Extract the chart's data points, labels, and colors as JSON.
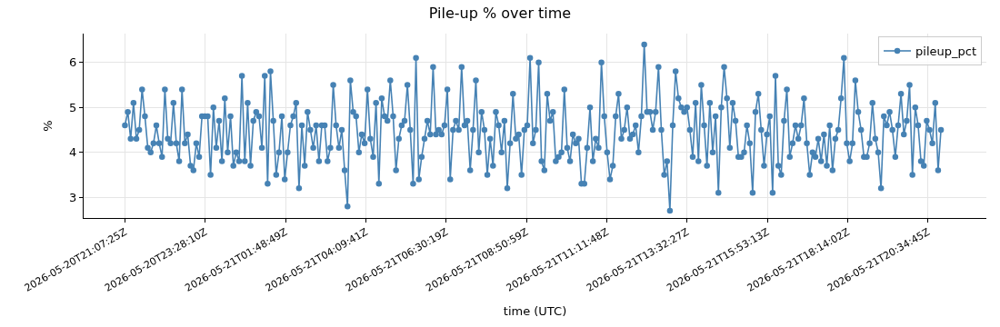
{
  "chart_data": {
    "type": "line",
    "title": "Pile-up % over time",
    "xlabel": "time (UTC)",
    "ylabel": "%",
    "x": [
      "2026-05-20T21:07:25",
      "2026-05-20T21:12:25",
      "2026-05-20T21:17:25",
      "2026-05-20T21:22:25",
      "2026-05-20T21:27:25",
      "2026-05-20T21:32:25",
      "2026-05-20T21:37:25",
      "2026-05-20T21:42:25",
      "2026-05-20T21:47:25",
      "2026-05-20T21:52:25",
      "2026-05-20T21:57:25",
      "2026-05-20T22:02:25",
      "2026-05-20T22:07:25",
      "2026-05-20T22:12:25",
      "2026-05-20T22:17:25",
      "2026-05-20T22:22:25",
      "2026-05-20T22:27:25",
      "2026-05-20T22:32:25",
      "2026-05-20T22:37:25",
      "2026-05-20T22:42:25",
      "2026-05-20T22:47:25",
      "2026-05-20T22:52:25",
      "2026-05-20T22:57:25",
      "2026-05-20T23:02:25",
      "2026-05-20T23:07:25",
      "2026-05-20T23:12:25",
      "2026-05-20T23:17:25",
      "2026-05-20T23:22:25",
      "2026-05-20T23:27:25",
      "2026-05-20T23:32:25",
      "2026-05-20T23:37:25",
      "2026-05-20T23:42:25",
      "2026-05-20T23:47:25",
      "2026-05-20T23:52:25",
      "2026-05-20T23:57:25",
      "2026-05-21T00:02:25",
      "2026-05-21T00:07:25",
      "2026-05-21T00:12:25",
      "2026-05-21T00:17:25",
      "2026-05-21T00:22:25",
      "2026-05-21T00:27:25",
      "2026-05-21T00:32:25",
      "2026-05-21T00:37:25",
      "2026-05-21T00:42:25",
      "2026-05-21T00:47:25",
      "2026-05-21T00:52:25",
      "2026-05-21T00:57:25",
      "2026-05-21T01:02:25",
      "2026-05-21T01:07:25",
      "2026-05-21T01:12:25",
      "2026-05-21T01:17:25",
      "2026-05-21T01:22:25",
      "2026-05-21T01:27:25",
      "2026-05-21T01:32:25",
      "2026-05-21T01:37:25",
      "2026-05-21T01:42:25",
      "2026-05-21T01:47:25",
      "2026-05-21T01:52:25",
      "2026-05-21T01:57:25",
      "2026-05-21T02:02:25",
      "2026-05-21T02:07:25",
      "2026-05-21T02:12:25",
      "2026-05-21T02:17:25",
      "2026-05-21T02:22:25",
      "2026-05-21T02:27:25",
      "2026-05-21T02:32:25",
      "2026-05-21T02:37:25",
      "2026-05-21T02:42:25",
      "2026-05-21T02:47:25",
      "2026-05-21T02:52:25",
      "2026-05-21T02:57:25",
      "2026-05-21T03:02:25",
      "2026-05-21T03:07:25",
      "2026-05-21T03:12:25",
      "2026-05-21T03:17:25",
      "2026-05-21T03:22:25",
      "2026-05-21T03:27:25",
      "2026-05-21T03:32:25",
      "2026-05-21T03:37:25",
      "2026-05-21T03:42:25",
      "2026-05-21T03:47:25",
      "2026-05-21T03:52:25",
      "2026-05-21T03:57:25",
      "2026-05-21T04:02:25",
      "2026-05-21T04:07:25",
      "2026-05-21T04:12:25",
      "2026-05-21T04:17:25",
      "2026-05-21T04:22:25",
      "2026-05-21T04:27:25",
      "2026-05-21T04:32:25",
      "2026-05-21T04:37:25",
      "2026-05-21T04:42:25",
      "2026-05-21T04:47:25",
      "2026-05-21T04:52:25",
      "2026-05-21T04:57:25",
      "2026-05-21T05:02:25",
      "2026-05-21T05:07:25",
      "2026-05-21T05:12:25",
      "2026-05-21T05:17:25",
      "2026-05-21T05:22:25",
      "2026-05-21T05:27:25",
      "2026-05-21T05:32:25",
      "2026-05-21T05:37:25",
      "2026-05-21T05:42:25",
      "2026-05-21T05:47:25",
      "2026-05-21T05:52:25",
      "2026-05-21T05:57:25",
      "2026-05-21T06:02:25",
      "2026-05-21T06:07:25",
      "2026-05-21T06:12:25",
      "2026-05-21T06:17:25",
      "2026-05-21T06:22:25",
      "2026-05-21T06:27:25",
      "2026-05-21T06:32:25",
      "2026-05-21T06:37:25",
      "2026-05-21T06:42:25",
      "2026-05-21T06:47:25",
      "2026-05-21T06:52:25",
      "2026-05-21T06:57:25",
      "2026-05-21T07:02:25",
      "2026-05-21T07:07:25",
      "2026-05-21T07:12:25",
      "2026-05-21T07:17:25",
      "2026-05-21T07:22:25",
      "2026-05-21T07:27:25",
      "2026-05-21T07:32:25",
      "2026-05-21T07:37:25",
      "2026-05-21T07:42:25",
      "2026-05-21T07:47:25",
      "2026-05-21T07:52:25",
      "2026-05-21T07:57:25",
      "2026-05-21T08:02:25",
      "2026-05-21T08:07:25",
      "2026-05-21T08:12:25",
      "2026-05-21T08:17:25",
      "2026-05-21T08:22:25",
      "2026-05-21T08:27:25",
      "2026-05-21T08:32:25",
      "2026-05-21T08:37:25",
      "2026-05-21T08:42:25",
      "2026-05-21T08:47:25",
      "2026-05-21T08:52:25",
      "2026-05-21T08:57:25",
      "2026-05-21T09:02:25",
      "2026-05-21T09:07:25",
      "2026-05-21T09:12:25",
      "2026-05-21T09:17:25",
      "2026-05-21T09:22:25",
      "2026-05-21T09:27:25",
      "2026-05-21T09:32:25",
      "2026-05-21T09:37:25",
      "2026-05-21T09:42:25",
      "2026-05-21T09:47:25",
      "2026-05-21T09:52:25",
      "2026-05-21T09:57:25",
      "2026-05-21T10:02:25",
      "2026-05-21T10:07:25",
      "2026-05-21T10:12:25",
      "2026-05-21T10:17:25",
      "2026-05-21T10:22:25",
      "2026-05-21T10:27:25",
      "2026-05-21T10:32:25",
      "2026-05-21T10:37:25",
      "2026-05-21T10:42:25",
      "2026-05-21T10:47:25",
      "2026-05-21T10:52:25",
      "2026-05-21T10:57:25",
      "2026-05-21T11:02:25",
      "2026-05-21T11:07:25",
      "2026-05-21T11:12:25",
      "2026-05-21T11:17:25",
      "2026-05-21T11:22:25",
      "2026-05-21T11:27:25",
      "2026-05-21T11:32:25",
      "2026-05-21T11:37:25",
      "2026-05-21T11:42:25",
      "2026-05-21T11:47:25",
      "2026-05-21T11:52:25",
      "2026-05-21T11:57:25",
      "2026-05-21T12:02:25",
      "2026-05-21T12:07:25",
      "2026-05-21T12:12:25",
      "2026-05-21T12:17:25",
      "2026-05-21T12:22:25",
      "2026-05-21T12:27:25",
      "2026-05-21T12:32:25",
      "2026-05-21T12:37:25",
      "2026-05-21T12:42:25",
      "2026-05-21T12:47:25",
      "2026-05-21T12:52:25",
      "2026-05-21T12:57:25",
      "2026-05-21T13:02:25",
      "2026-05-21T13:07:25",
      "2026-05-21T13:12:25",
      "2026-05-21T13:17:25",
      "2026-05-21T13:22:25",
      "2026-05-21T13:27:25",
      "2026-05-21T13:32:25",
      "2026-05-21T13:37:25",
      "2026-05-21T13:42:25",
      "2026-05-21T13:47:25",
      "2026-05-21T13:52:25",
      "2026-05-21T13:57:25",
      "2026-05-21T14:02:25",
      "2026-05-21T14:07:25",
      "2026-05-21T14:12:25",
      "2026-05-21T14:17:25",
      "2026-05-21T14:22:25",
      "2026-05-21T14:27:25",
      "2026-05-21T14:32:25",
      "2026-05-21T14:37:25",
      "2026-05-21T14:42:25",
      "2026-05-21T14:47:25",
      "2026-05-21T14:52:25",
      "2026-05-21T14:57:25",
      "2026-05-21T15:02:25",
      "2026-05-21T15:07:25",
      "2026-05-21T15:12:25",
      "2026-05-21T15:17:25",
      "2026-05-21T15:22:25",
      "2026-05-21T15:27:25",
      "2026-05-21T15:32:25",
      "2026-05-21T15:37:25",
      "2026-05-21T15:42:25",
      "2026-05-21T15:47:25",
      "2026-05-21T15:52:25",
      "2026-05-21T15:57:25",
      "2026-05-21T16:02:25",
      "2026-05-21T16:07:25",
      "2026-05-21T16:12:25",
      "2026-05-21T16:17:25",
      "2026-05-21T16:22:25",
      "2026-05-21T16:27:25",
      "2026-05-21T16:32:25",
      "2026-05-21T16:37:25",
      "2026-05-21T16:42:25",
      "2026-05-21T16:47:25",
      "2026-05-21T16:52:25",
      "2026-05-21T16:57:25",
      "2026-05-21T17:02:25",
      "2026-05-21T17:07:25",
      "2026-05-21T17:12:25",
      "2026-05-21T17:17:25",
      "2026-05-21T17:22:25",
      "2026-05-21T17:27:25",
      "2026-05-21T17:32:25",
      "2026-05-21T17:37:25",
      "2026-05-21T17:42:25",
      "2026-05-21T17:47:25",
      "2026-05-21T17:52:25",
      "2026-05-21T17:57:25",
      "2026-05-21T18:02:25",
      "2026-05-21T18:07:25",
      "2026-05-21T18:12:25",
      "2026-05-21T18:17:25",
      "2026-05-21T18:22:25",
      "2026-05-21T18:27:25",
      "2026-05-21T18:32:25",
      "2026-05-21T18:37:25",
      "2026-05-21T18:42:25",
      "2026-05-21T18:47:25",
      "2026-05-21T18:52:25",
      "2026-05-21T18:57:25",
      "2026-05-21T19:02:25",
      "2026-05-21T19:07:25",
      "2026-05-21T19:12:25",
      "2026-05-21T19:17:25",
      "2026-05-21T19:22:25",
      "2026-05-21T19:27:25",
      "2026-05-21T19:32:25",
      "2026-05-21T19:37:25",
      "2026-05-21T19:42:25",
      "2026-05-21T19:47:25",
      "2026-05-21T19:52:25",
      "2026-05-21T19:57:25",
      "2026-05-21T20:02:25",
      "2026-05-21T20:07:25",
      "2026-05-21T20:12:25",
      "2026-05-21T20:17:25",
      "2026-05-21T20:22:25",
      "2026-05-21T20:27:25",
      "2026-05-21T20:32:25",
      "2026-05-21T20:37:25",
      "2026-05-21T20:42:25",
      "2026-05-21T20:47:25",
      "2026-05-21T20:52:25",
      "2026-05-21T20:57:25"
    ],
    "series": [
      {
        "name": "pileup_pct",
        "color": "#4682b4",
        "values": [
          4.6,
          4.9,
          4.3,
          5.1,
          4.3,
          4.5,
          5.4,
          4.8,
          4.1,
          4.0,
          4.2,
          4.6,
          4.2,
          3.9,
          5.4,
          4.3,
          4.2,
          5.1,
          4.2,
          3.8,
          5.4,
          4.2,
          4.4,
          3.7,
          3.6,
          4.2,
          3.9,
          4.8,
          4.8,
          4.8,
          3.5,
          5.0,
          4.1,
          4.7,
          3.8,
          5.2,
          4.0,
          4.8,
          3.7,
          4.0,
          3.8,
          5.7,
          3.8,
          5.1,
          3.7,
          4.7,
          4.9,
          4.8,
          4.1,
          5.7,
          3.3,
          5.8,
          4.7,
          3.5,
          4.0,
          4.8,
          3.4,
          4.0,
          4.6,
          4.8,
          5.1,
          3.2,
          4.6,
          3.7,
          4.9,
          4.5,
          4.1,
          4.6,
          3.8,
          4.6,
          4.6,
          3.8,
          4.1,
          5.5,
          4.6,
          4.1,
          4.5,
          3.6,
          2.8,
          5.6,
          4.9,
          4.8,
          4.0,
          4.4,
          4.2,
          5.4,
          4.3,
          3.9,
          5.1,
          3.3,
          5.2,
          4.8,
          4.7,
          5.6,
          4.8,
          3.6,
          4.3,
          4.6,
          4.7,
          5.5,
          4.5,
          3.3,
          6.1,
          3.4,
          3.9,
          4.3,
          4.7,
          4.4,
          5.9,
          4.4,
          4.5,
          4.4,
          4.6,
          5.4,
          3.4,
          4.5,
          4.7,
          4.5,
          5.9,
          4.6,
          4.7,
          3.6,
          4.5,
          5.6,
          4.0,
          4.9,
          4.5,
          3.5,
          4.3,
          3.7,
          4.9,
          4.6,
          4.0,
          4.7,
          3.2,
          4.2,
          5.3,
          4.3,
          4.4,
          3.5,
          4.5,
          4.6,
          6.1,
          4.2,
          4.5,
          6.0,
          3.8,
          3.6,
          5.3,
          4.7,
          4.9,
          3.8,
          3.9,
          4.0,
          5.4,
          4.1,
          3.8,
          4.4,
          4.2,
          4.3,
          3.3,
          3.3,
          4.1,
          5.0,
          3.8,
          4.3,
          4.1,
          6.0,
          4.8,
          4.0,
          3.4,
          3.7,
          4.8,
          5.3,
          4.3,
          4.5,
          5.0,
          4.3,
          4.4,
          4.6,
          4.0,
          4.8,
          6.4,
          4.9,
          4.9,
          4.5,
          4.9,
          5.9,
          4.5,
          3.5,
          3.8,
          2.7,
          4.6,
          5.8,
          5.2,
          5.0,
          4.9,
          5.0,
          4.5,
          3.9,
          5.1,
          3.8,
          5.5,
          4.6,
          3.7,
          5.1,
          4.0,
          4.8,
          3.1,
          5.0,
          5.9,
          5.2,
          4.1,
          5.1,
          4.7,
          3.9,
          3.9,
          4.0,
          4.6,
          4.2,
          3.1,
          4.9,
          5.3,
          4.5,
          3.7,
          4.4,
          4.8,
          3.1,
          5.7,
          3.7,
          3.5,
          4.7,
          5.4,
          3.9,
          4.2,
          4.6,
          4.3,
          4.6,
          5.2,
          4.2,
          3.5,
          4.0,
          3.9,
          4.3,
          3.8,
          4.4,
          3.7,
          4.6,
          3.6,
          4.3,
          4.5,
          5.2,
          6.1,
          4.2,
          3.8,
          4.2,
          5.6,
          4.9,
          4.5,
          3.9,
          3.9,
          4.2,
          5.1,
          4.3,
          4.0,
          3.2,
          4.8,
          4.6,
          4.9,
          4.5,
          3.9,
          4.6,
          5.3,
          4.4,
          4.7,
          5.5,
          3.5,
          5.0,
          4.6,
          3.8,
          3.7,
          4.7,
          4.5,
          4.2,
          5.1,
          3.6,
          4.5
        ]
      }
    ],
    "xlim": [
      "2026-05-20T19:55:00",
      "2026-05-21T22:17:00"
    ],
    "xticks": [
      {
        "value": "2026-05-20T21:07:25",
        "label": "2026-05-20T21:07:25Z"
      },
      {
        "value": "2026-05-20T23:28:10",
        "label": "2026-05-20T23:28:10Z"
      },
      {
        "value": "2026-05-21T01:48:49",
        "label": "2026-05-21T01:48:49Z"
      },
      {
        "value": "2026-05-21T04:09:41",
        "label": "2026-05-21T04:09:41Z"
      },
      {
        "value": "2026-05-21T06:30:19",
        "label": "2026-05-21T06:30:19Z"
      },
      {
        "value": "2026-05-21T08:50:59",
        "label": "2026-05-21T08:50:59Z"
      },
      {
        "value": "2026-05-21T11:11:48",
        "label": "2026-05-21T11:11:48Z"
      },
      {
        "value": "2026-05-21T13:32:27",
        "label": "2026-05-21T13:32:27Z"
      },
      {
        "value": "2026-05-21T15:53:13",
        "label": "2026-05-21T15:53:13Z"
      },
      {
        "value": "2026-05-21T18:14:02",
        "label": "2026-05-21T18:14:02Z"
      },
      {
        "value": "2026-05-21T20:34:45",
        "label": "2026-05-21T20:34:45Z"
      }
    ],
    "ylim": [
      2.54,
      6.64
    ],
    "yticks": [
      3,
      4,
      5,
      6
    ],
    "grid": true,
    "legend": "top right",
    "marker": "circle",
    "line_style": "solid"
  }
}
